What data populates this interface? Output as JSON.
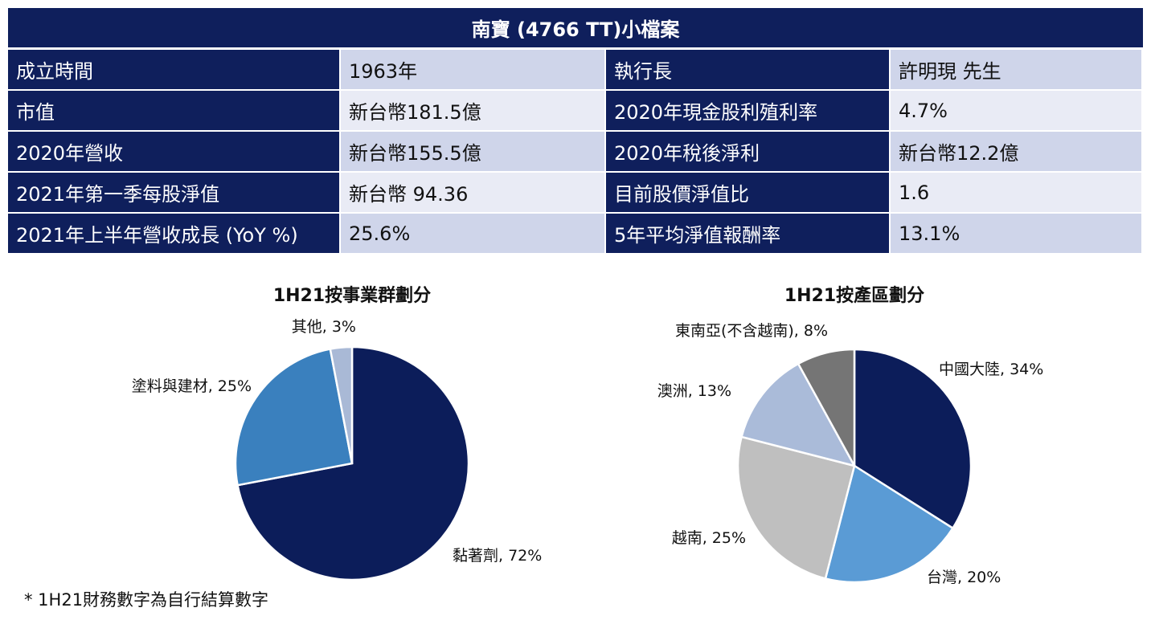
{
  "profile": {
    "title": "南寶 (4766 TT)小檔案",
    "rows": [
      {
        "label1": "成立時間",
        "value1": "1963年",
        "label2": "執行長",
        "value2": "許明現 先生"
      },
      {
        "label1": "市值",
        "value1": "新台幣181.5億",
        "label2": "2020年現金股利殖利率",
        "value2": "4.7%"
      },
      {
        "label1": "2020年營收",
        "value1": "新台幣155.5億",
        "label2": "2020年稅後淨利",
        "value2": "新台幣12.2億"
      },
      {
        "label1": "2021年第一季每股淨值",
        "value1": "新台幣 94.36",
        "label2": "目前股價淨值比",
        "value2": "1.6"
      },
      {
        "label1": "2021年上半年營收成長 (YoY %)",
        "value1": "25.6%",
        "label2": "5年平均淨值報酬率",
        "value2": "13.1%"
      }
    ]
  },
  "chart_data": [
    {
      "type": "pie",
      "title": "1H21按事業群劃分",
      "slices": [
        {
          "label": "黏著劑, 72%",
          "value": 72,
          "color": "#0c1d5a"
        },
        {
          "label": "塗料與建材, 25%",
          "value": 25,
          "color": "#3a80be"
        },
        {
          "label": "其他, 3%",
          "value": 3,
          "color": "#a9b9d6"
        }
      ]
    },
    {
      "type": "pie",
      "title": "1H21按產區劃分",
      "slices": [
        {
          "label": "中國大陸, 34%",
          "value": 34,
          "color": "#0c1d5a"
        },
        {
          "label": "台灣, 20%",
          "value": 20,
          "color": "#5a9bd5"
        },
        {
          "label": "越南, 25%",
          "value": 25,
          "color": "#bfbfbf"
        },
        {
          "label": "澳洲, 13%",
          "value": 13,
          "color": "#aabbd9"
        },
        {
          "label": "東南亞(不含越南), 8%",
          "value": 8,
          "color": "#757575"
        }
      ]
    }
  ],
  "footnote": "* 1H21財務數字為自行結算數字"
}
